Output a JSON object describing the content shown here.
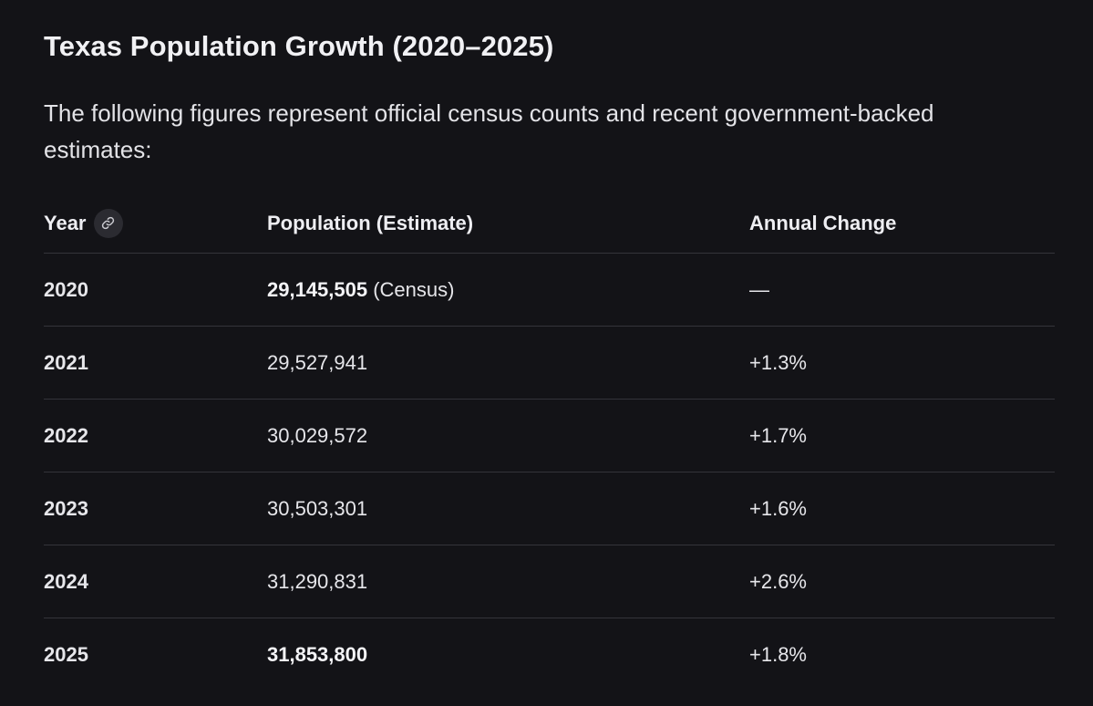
{
  "title": "Texas Population Growth (2020–2025)",
  "intro": "The following figures represent official census counts and recent government-backed estimates:",
  "icons": {
    "year_link": "link-icon"
  },
  "colors": {
    "background": "#131317",
    "text": "#e6e6ea",
    "divider": "#34343a"
  },
  "table": {
    "headers": {
      "year": "Year",
      "population": "Population (Estimate)",
      "change": "Annual Change"
    },
    "rows": [
      {
        "year": "2020",
        "population": "29,145,505",
        "population_note": " (Census)",
        "change": "—"
      },
      {
        "year": "2021",
        "population": "29,527,941",
        "change": "+1.3%"
      },
      {
        "year": "2022",
        "population": "30,029,572",
        "change": "+1.7%"
      },
      {
        "year": "2023",
        "population": "30,503,301",
        "change": "+1.6%"
      },
      {
        "year": "2024",
        "population": "31,290,831",
        "change": "+2.6%"
      },
      {
        "year": "2025",
        "population": "31,853,800",
        "change": "+1.8%"
      }
    ]
  }
}
